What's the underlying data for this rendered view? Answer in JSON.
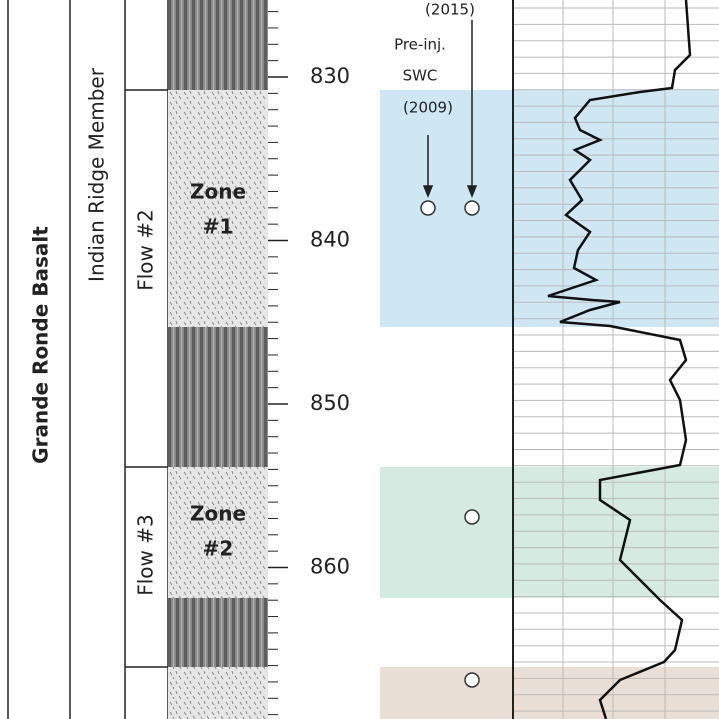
{
  "columns": {
    "formation": "Grande Ronde Basalt",
    "member": "Indian Ridge Member",
    "flows": [
      "Flow #2",
      "Flow #3"
    ]
  },
  "zones": [
    [
      "Zone",
      "#1"
    ],
    [
      "Zone",
      "#2"
    ]
  ],
  "depth_axis": {
    "ticks": [
      830,
      840,
      850,
      860
    ]
  },
  "annotations": {
    "year_2015": "(2015)",
    "pre_inj": "Pre-inj.",
    "swc": "SWC",
    "year_2009": "(2009)"
  }
}
